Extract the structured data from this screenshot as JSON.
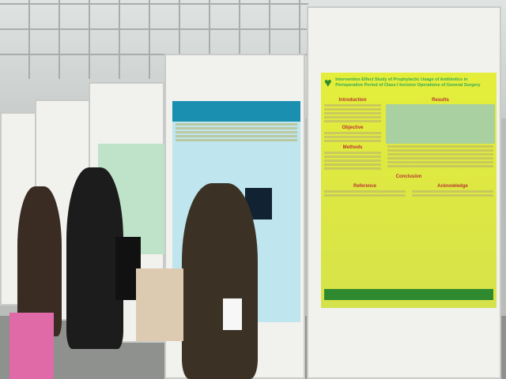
{
  "poster_main": {
    "title": "Intervention Effect Study of Prophylactic Usage of Antibiotics in Perioperative Period of Class I Incision Operations of General Surgery",
    "sections": [
      "Introduction",
      "Results",
      "Objective",
      "Methods",
      "Conclusion",
      "Reference",
      "Acknowledge"
    ],
    "bg_color": "#d9e83a",
    "footer_color": "#2f8a2f"
  },
  "poster_center": {
    "bg_color": "#bfe6ee",
    "header_color": "#1b8fb0"
  }
}
